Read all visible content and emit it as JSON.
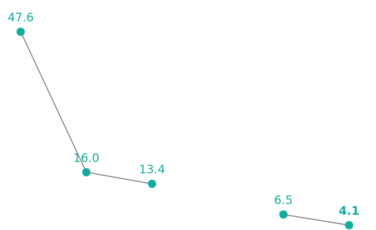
{
  "chart_data": {
    "type": "line",
    "title": "",
    "xlabel": "",
    "ylabel": "",
    "grid": false,
    "legend": "none",
    "accent_color": "#13aca0",
    "line_color": "#7a7a7a",
    "ylim": [
      0,
      50
    ],
    "points": [
      {
        "x": 1,
        "y": 47.6,
        "label": "47.6",
        "bold": false
      },
      {
        "x": 2,
        "y": 16.0,
        "label": "16.0",
        "bold": false
      },
      {
        "x": 3,
        "y": 13.4,
        "label": "13.4",
        "bold": false
      },
      {
        "x": 5,
        "y": 6.5,
        "label": "6.5",
        "bold": false
      },
      {
        "x": 6,
        "y": 4.1,
        "label": "4.1",
        "bold": true
      }
    ],
    "segments": [
      [
        0,
        1
      ],
      [
        1,
        2
      ],
      [
        3,
        4
      ]
    ]
  }
}
